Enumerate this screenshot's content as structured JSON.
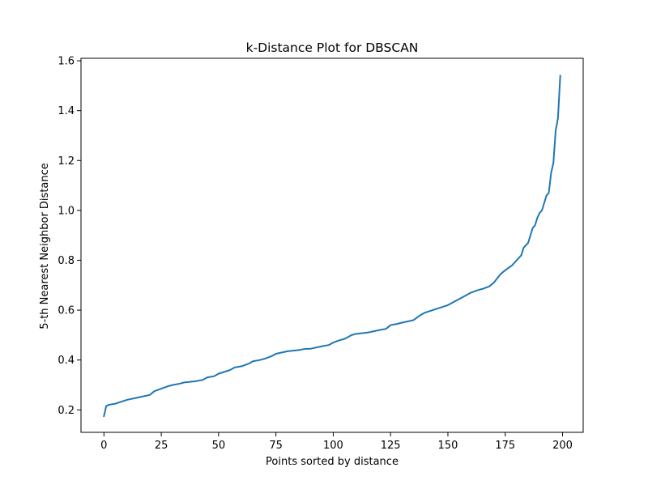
{
  "chart_data": {
    "type": "line",
    "title": "k-Distance Plot for DBSCAN",
    "xlabel": "Points sorted by distance",
    "ylabel": "5-th Nearest Neighbor Distance",
    "xlim": [
      -10,
      209
    ],
    "ylim": [
      0.11,
      1.61
    ],
    "xticks": [
      0,
      25,
      50,
      75,
      100,
      125,
      150,
      175,
      200
    ],
    "yticks": [
      0.2,
      0.4,
      0.6,
      0.8,
      1.0,
      1.2,
      1.4,
      1.6
    ],
    "ytick_labels": [
      "0.2",
      "0.4",
      "0.6",
      "0.8",
      "1.0",
      "1.2",
      "1.4",
      "1.6"
    ],
    "grid": false,
    "color": "#1f77b4",
    "series": [
      {
        "x": [
          0,
          1,
          2,
          5,
          10,
          15,
          20,
          22,
          25,
          28,
          30,
          33,
          35,
          40,
          43,
          45,
          48,
          50,
          55,
          57,
          60,
          63,
          65,
          68,
          70,
          73,
          75,
          80,
          85,
          88,
          90,
          95,
          98,
          100,
          103,
          105,
          108,
          110,
          115,
          120,
          123,
          125,
          128,
          130,
          135,
          138,
          140,
          145,
          150,
          153,
          155,
          158,
          160,
          163,
          165,
          168,
          170,
          173,
          175,
          178,
          180,
          182,
          183,
          185,
          186,
          187,
          188,
          189,
          190,
          191,
          192,
          193,
          194,
          195,
          196,
          197,
          198,
          199
        ],
        "y": [
          0.175,
          0.215,
          0.22,
          0.225,
          0.24,
          0.25,
          0.26,
          0.275,
          0.285,
          0.295,
          0.3,
          0.305,
          0.31,
          0.315,
          0.32,
          0.33,
          0.335,
          0.345,
          0.36,
          0.37,
          0.375,
          0.385,
          0.395,
          0.4,
          0.405,
          0.415,
          0.425,
          0.435,
          0.44,
          0.445,
          0.445,
          0.455,
          0.46,
          0.47,
          0.48,
          0.485,
          0.5,
          0.505,
          0.51,
          0.52,
          0.525,
          0.54,
          0.545,
          0.55,
          0.56,
          0.58,
          0.59,
          0.605,
          0.62,
          0.635,
          0.645,
          0.66,
          0.67,
          0.68,
          0.685,
          0.695,
          0.71,
          0.745,
          0.76,
          0.78,
          0.8,
          0.82,
          0.85,
          0.87,
          0.9,
          0.93,
          0.94,
          0.97,
          0.99,
          1.0,
          1.03,
          1.06,
          1.07,
          1.15,
          1.19,
          1.32,
          1.37,
          1.54
        ]
      }
    ]
  }
}
